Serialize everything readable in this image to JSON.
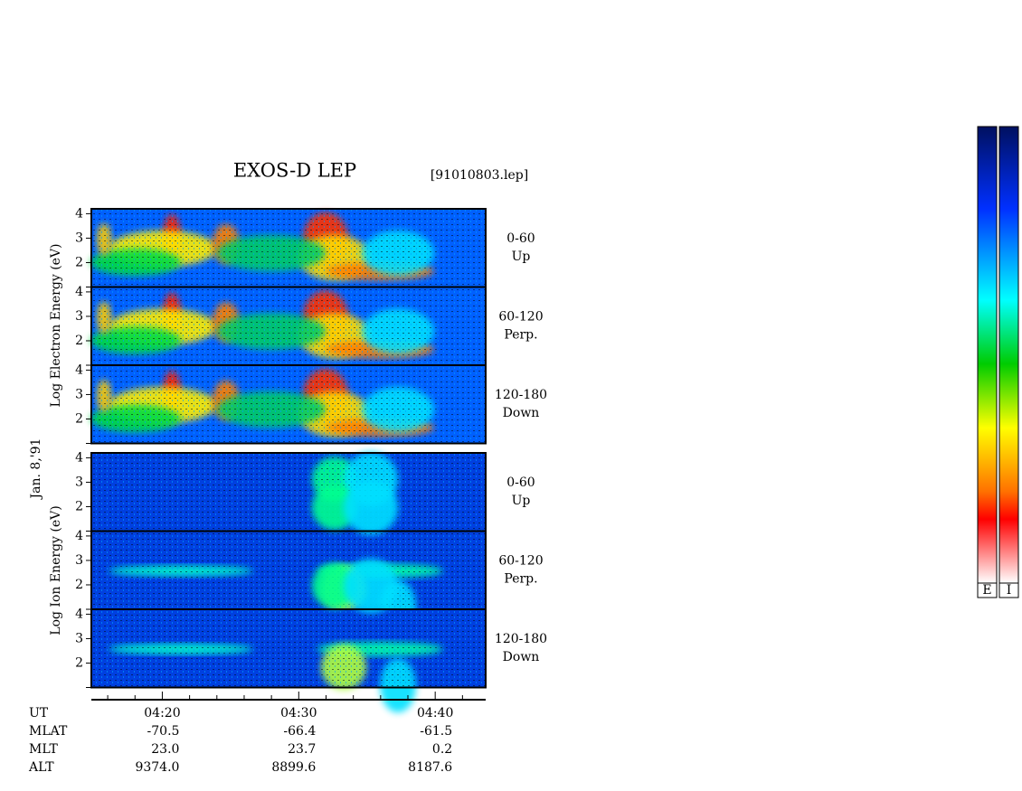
{
  "chart_data": {
    "type": "spectrogram",
    "title": "EXOS-D LEP",
    "file": "[91010803.lep]",
    "date": "Jan. 8,'91",
    "groups": [
      {
        "ylabel": "Log  Electron  Energy (eV)"
      },
      {
        "ylabel": "Log  Ion  Energy (eV)"
      }
    ],
    "panels": [
      {
        "angle": "0-60",
        "direction": "Up"
      },
      {
        "angle": "60-120",
        "direction": "Perp."
      },
      {
        "angle": "120-180",
        "direction": "Down"
      },
      {
        "angle": "0-60",
        "direction": "Up"
      },
      {
        "angle": "60-120",
        "direction": "Perp."
      },
      {
        "angle": "120-180",
        "direction": "Down"
      }
    ],
    "ylim": [
      1,
      4.2
    ],
    "yticks": [
      2,
      3,
      4
    ],
    "xlim": [
      14.8,
      43.7
    ],
    "xticks": [
      {
        "value": 20,
        "label": "04:20"
      },
      {
        "value": 30,
        "label": "04:30"
      },
      {
        "value": 40,
        "label": "04:40"
      }
    ],
    "xminorticks": [
      16,
      18,
      22,
      24,
      26,
      28,
      32,
      34,
      36,
      38,
      42
    ],
    "ephemeris": [
      {
        "name": "UT"
      },
      {
        "name": "MLAT",
        "values": [
          "-70.5",
          "-66.4",
          "-61.5"
        ]
      },
      {
        "name": "MLT",
        "values": [
          "23.0",
          "23.7",
          "0.2"
        ]
      },
      {
        "name": "ALT",
        "values": [
          "9374.0",
          "8899.6",
          "8187.6"
        ]
      }
    ],
    "colorbars": [
      "E",
      "I"
    ]
  }
}
